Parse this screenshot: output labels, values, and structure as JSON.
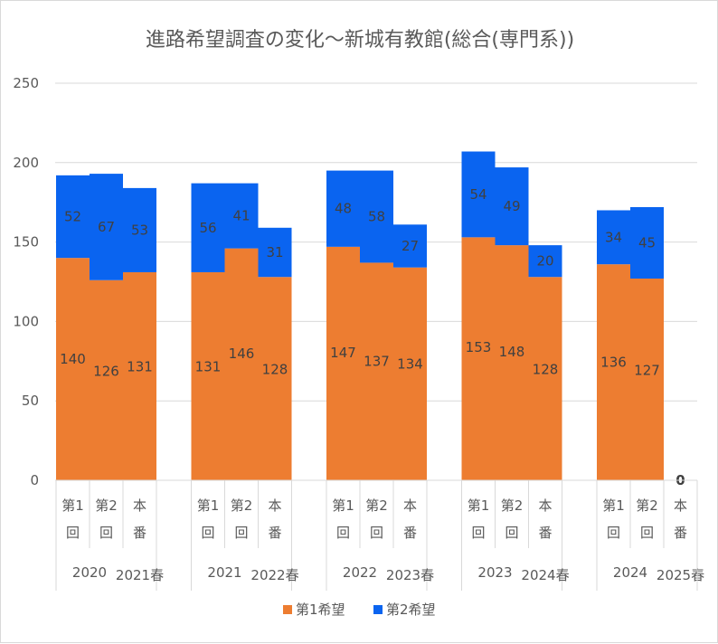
{
  "chart_data": {
    "type": "bar",
    "title": "進路希望調査の変化〜新城有教館(総合(専門系))",
    "xlabel": "",
    "ylabel": "",
    "ylim": [
      0,
      250
    ],
    "yticks": [
      0,
      50,
      100,
      150,
      200,
      250
    ],
    "grid": true,
    "legend_position": "bottom",
    "stacked": true,
    "groups": [
      {
        "year": "2020",
        "exam": "2021春",
        "categories": [
          {
            "label_top": "第1",
            "label_bottom": "回"
          },
          {
            "label_top": "第2",
            "label_bottom": "回"
          },
          {
            "label_top": "本",
            "label_bottom": "番"
          }
        ]
      },
      {
        "year": "2021",
        "exam": "2022春",
        "categories": [
          {
            "label_top": "第1",
            "label_bottom": "回"
          },
          {
            "label_top": "第2",
            "label_bottom": "回"
          },
          {
            "label_top": "本",
            "label_bottom": "番"
          }
        ]
      },
      {
        "year": "2022",
        "exam": "2023春",
        "categories": [
          {
            "label_top": "第1",
            "label_bottom": "回"
          },
          {
            "label_top": "第2",
            "label_bottom": "回"
          },
          {
            "label_top": "本",
            "label_bottom": "番"
          }
        ]
      },
      {
        "year": "2023",
        "exam": "2024春",
        "categories": [
          {
            "label_top": "第1",
            "label_bottom": "回"
          },
          {
            "label_top": "第2",
            "label_bottom": "回"
          },
          {
            "label_top": "本",
            "label_bottom": "番"
          }
        ]
      },
      {
        "year": "2024",
        "exam": "2025春",
        "categories": [
          {
            "label_top": "第1",
            "label_bottom": "回"
          },
          {
            "label_top": "第2",
            "label_bottom": "回"
          },
          {
            "label_top": "本",
            "label_bottom": "番"
          }
        ]
      }
    ],
    "series": [
      {
        "name": "第1希望",
        "color": "#ed7d31",
        "values": [
          140,
          126,
          131,
          131,
          146,
          128,
          147,
          137,
          134,
          153,
          148,
          128,
          136,
          127,
          0
        ]
      },
      {
        "name": "第2希望",
        "color": "#0a64f0",
        "values": [
          52,
          67,
          53,
          56,
          41,
          31,
          48,
          58,
          27,
          54,
          49,
          20,
          34,
          45,
          null
        ]
      }
    ],
    "single_label": {
      "index": 14,
      "text": "0"
    }
  }
}
